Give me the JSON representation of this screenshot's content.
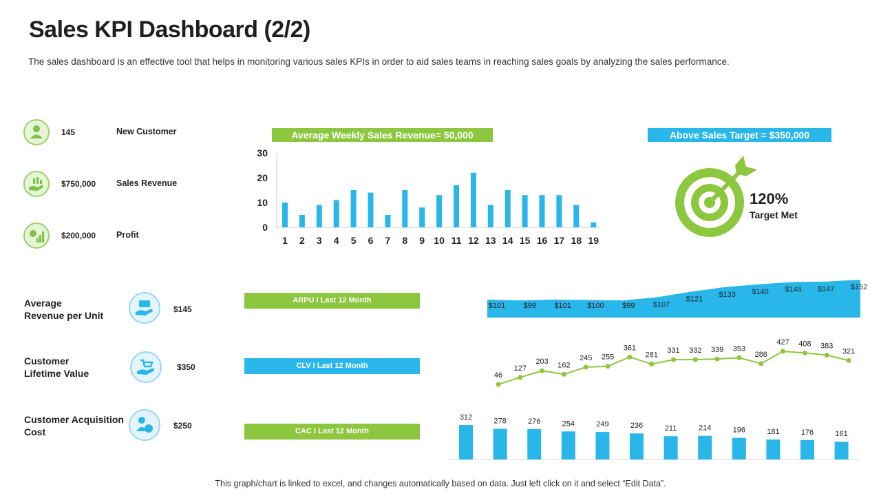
{
  "header": {
    "title": "Sales KPI Dashboard (2/2)",
    "subtitle": "The sales dashboard is an effective tool that helps in monitoring various sales KPIs in order to aid sales teams in reaching sales goals by analyzing the sales performance."
  },
  "kpis": [
    {
      "value": "145",
      "label": "New Customer",
      "icon": "customer-icon"
    },
    {
      "value": "$750,000",
      "label": "Sales Revenue",
      "icon": "revenue-icon"
    },
    {
      "value": "$200,000",
      "label": "Profit",
      "icon": "profit-icon"
    }
  ],
  "weekly_banner": "Average Weekly Sales Revenue= 50,000",
  "target": {
    "banner": "Above Sales Target = $350,000",
    "percent": "120%",
    "label": "Target Met"
  },
  "metrics": [
    {
      "label_line1": "Average",
      "label_line2": "Revenue per Unit",
      "value": "$145",
      "banner": "ARPU I Last 12 Month",
      "icon": "money-hand-icon"
    },
    {
      "label_line1": "Customer",
      "label_line2": "Lifetime Value",
      "value": "$350",
      "banner": "CLV I Last 12 Month",
      "icon": "cart-hand-icon"
    },
    {
      "label_line1": "Customer Acquisition",
      "label_line2": "Cost",
      "value": "$250",
      "banner": "CAC I Last 12 Month",
      "icon": "user-dollar-icon"
    }
  ],
  "footer": "This graph/chart is linked to excel, and changes automatically based on data. Just left click on it and select “Edit Data”.",
  "colors": {
    "green": "#8dc63f",
    "blue": "#29b6e8",
    "text": "#222222"
  },
  "chart_data": [
    {
      "type": "bar",
      "categories": [
        "1",
        "2",
        "3",
        "4",
        "5",
        "6",
        "7",
        "8",
        "9",
        "10",
        "11",
        "12",
        "13",
        "14",
        "15",
        "16",
        "17",
        "18",
        "19"
      ],
      "values": [
        10,
        5,
        9,
        11,
        15,
        14,
        5,
        15,
        8,
        13,
        17,
        22,
        9,
        15,
        13,
        13,
        13,
        9,
        2
      ],
      "ylim": [
        0,
        30
      ],
      "yticks": [
        "0",
        "10",
        "20",
        "30"
      ],
      "grid": false
    },
    {
      "type": "area",
      "labels": [
        "$101",
        "$99",
        "$101",
        "$100",
        "$99",
        "$107",
        "$121",
        "$133",
        "$140",
        "$146",
        "$147",
        "$152"
      ],
      "values": [
        101,
        99,
        101,
        100,
        99,
        107,
        121,
        133,
        140,
        146,
        147,
        152
      ]
    },
    {
      "type": "line",
      "labels": [
        "46",
        "127",
        "203",
        "162",
        "245",
        "255",
        "361",
        "281",
        "331",
        "332",
        "339",
        "353",
        "286",
        "427",
        "408",
        "383",
        "321"
      ],
      "values": [
        46,
        127,
        203,
        162,
        245,
        255,
        361,
        281,
        331,
        332,
        339,
        353,
        286,
        427,
        408,
        383,
        321
      ]
    },
    {
      "type": "bar",
      "labels": [
        "312",
        "278",
        "276",
        "254",
        "249",
        "236",
        "211",
        "214",
        "196",
        "181",
        "176",
        "161"
      ],
      "values": [
        312,
        278,
        276,
        254,
        249,
        236,
        211,
        214,
        196,
        181,
        176,
        161
      ]
    }
  ]
}
